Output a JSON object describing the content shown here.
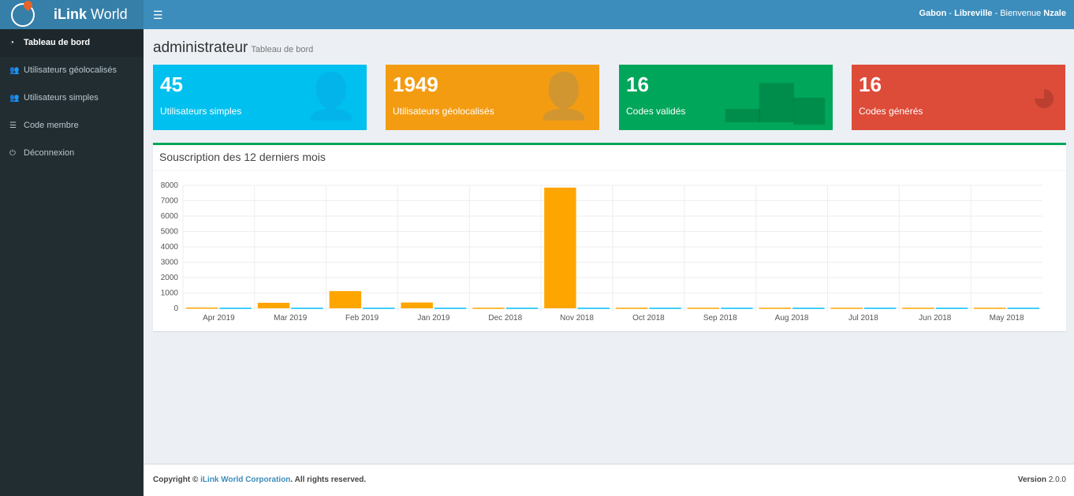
{
  "header": {
    "brand_bold": "iLink",
    "brand_rest": " World",
    "country": "Gabon",
    "sep": " - ",
    "city": "Libreville",
    "welcome": " - Bienvenue ",
    "user": "Nzale"
  },
  "sidebar": {
    "items": [
      {
        "label": "Tableau de bord",
        "icon": "dashboard-icon",
        "active": true
      },
      {
        "label": "Utilisateurs géolocalisés",
        "icon": "users-icon"
      },
      {
        "label": "Utilisateurs simples",
        "icon": "users-icon"
      },
      {
        "label": "Code membre",
        "icon": "database-icon"
      },
      {
        "label": "Déconnexion",
        "icon": "power-icon"
      }
    ]
  },
  "page": {
    "title": "administrateur",
    "subtitle": "Tableau de bord"
  },
  "boxes": [
    {
      "value": "45",
      "label": "Utilisateurs simples",
      "color": "#00c0ef",
      "icon": "user-plus-icon"
    },
    {
      "value": "1949",
      "label": "Utilisateurs géolocalisés",
      "color": "#f39c12",
      "icon": "user-plus-icon"
    },
    {
      "value": "16",
      "label": "Codes validés",
      "color": "#00a65a",
      "icon": "bar-chart-icon"
    },
    {
      "value": "16",
      "label": "Codes générés",
      "color": "#dd4b39",
      "icon": "pie-chart-icon"
    }
  ],
  "panel": {
    "title": "Souscription des 12 derniers mois"
  },
  "chart_data": {
    "type": "bar",
    "title": "",
    "ylim": [
      0,
      8000
    ],
    "yticks": [
      "0",
      "1000",
      "2000",
      "3000",
      "4000",
      "5000",
      "6000",
      "7000",
      "8000"
    ],
    "categories": [
      "Apr 2019",
      "Mar 2019",
      "Feb 2019",
      "Jan 2019",
      "Dec 2018",
      "Nov 2018",
      "Oct 2018",
      "Sep 2018",
      "Aug 2018",
      "Jul 2018",
      "Jun 2018",
      "May 2018"
    ],
    "series": [
      {
        "color": "#ffa500",
        "values": [
          50,
          360,
          1120,
          380,
          40,
          7850,
          40,
          40,
          40,
          40,
          40,
          40
        ]
      },
      {
        "color": "#00bfff",
        "values": [
          40,
          40,
          40,
          40,
          40,
          40,
          40,
          40,
          40,
          40,
          40,
          40
        ]
      }
    ],
    "grid": true
  },
  "footer": {
    "copyright": "Copyright © ",
    "company": "iLink World Corporation",
    "rights": ". All rights reserved.",
    "version_label": "Version",
    "version": " 2.0.0"
  }
}
